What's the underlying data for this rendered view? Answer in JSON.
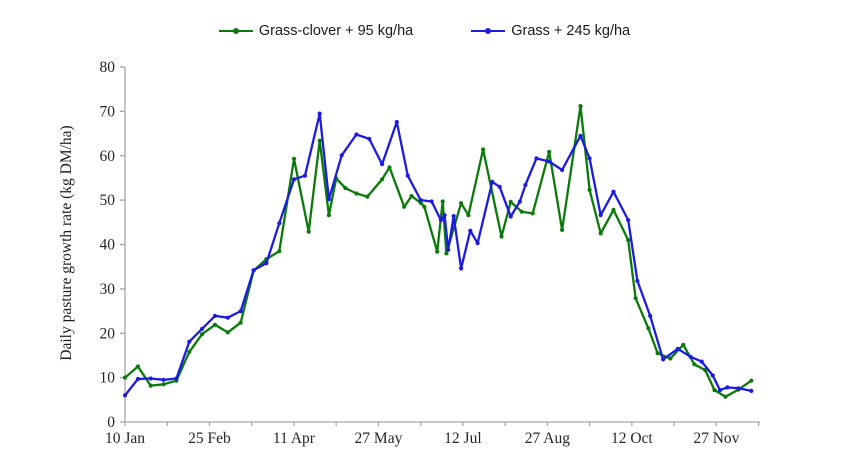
{
  "legend": {
    "items": [
      {
        "label": "Grass-clover + 95 kg/ha",
        "color": "#0a7a0a"
      },
      {
        "label": "Grass + 245 kg/ha",
        "color": "#1c1ce0"
      }
    ]
  },
  "chart_data": {
    "type": "line",
    "title": "",
    "xlabel": "",
    "ylabel": "Daily pasture growth rate (kg DM/ha)",
    "ylim": [
      0,
      80
    ],
    "y_ticks": [
      0,
      10,
      20,
      30,
      40,
      50,
      60,
      70,
      80
    ],
    "grid": false,
    "legend_position": "top-center",
    "x_unit": "days since 10 Jan",
    "x_range_days": [
      0,
      345
    ],
    "x_major_ticks": [
      {
        "day": 0,
        "label": "10 Jan"
      },
      {
        "day": 46,
        "label": "25 Feb"
      },
      {
        "day": 92,
        "label": "11 Apr"
      },
      {
        "day": 138,
        "label": "27 May"
      },
      {
        "day": 184,
        "label": "12 Jul"
      },
      {
        "day": 230,
        "label": "27 Aug"
      },
      {
        "day": 276,
        "label": "12 Oct"
      },
      {
        "day": 322,
        "label": "27 Nov"
      }
    ],
    "x_minor_ticks_days": [
      23,
      69,
      115,
      161,
      207,
      253,
      299,
      345
    ],
    "axis_color": "#a6a6a6",
    "tick_text_color": "#262626",
    "series": [
      {
        "name": "Grass-clover + 95 kg/ha",
        "color": "#0a7a0a",
        "points": [
          [
            0,
            10.0
          ],
          [
            7,
            12.5
          ],
          [
            14,
            8.2
          ],
          [
            21,
            8.5
          ],
          [
            28,
            9.3
          ],
          [
            35,
            15.8
          ],
          [
            42,
            19.8
          ],
          [
            49,
            21.9
          ],
          [
            56,
            20.2
          ],
          [
            63,
            22.4
          ],
          [
            70,
            34.1
          ],
          [
            77,
            36.7
          ],
          [
            84,
            38.5
          ],
          [
            92,
            59.3
          ],
          [
            100,
            42.9
          ],
          [
            106,
            63.4
          ],
          [
            111,
            46.6
          ],
          [
            115,
            54.9
          ],
          [
            120,
            52.7
          ],
          [
            126,
            51.5
          ],
          [
            132,
            50.8
          ],
          [
            140,
            54.7
          ],
          [
            144,
            57.4
          ],
          [
            152,
            48.5
          ],
          [
            156,
            50.9
          ],
          [
            161,
            49.4
          ],
          [
            163,
            48.5
          ],
          [
            170,
            38.4
          ],
          [
            173,
            49.7
          ],
          [
            175,
            38.0
          ],
          [
            183,
            49.3
          ],
          [
            187,
            46.6
          ],
          [
            195,
            61.4
          ],
          [
            205,
            41.8
          ],
          [
            210,
            49.6
          ],
          [
            216,
            47.4
          ],
          [
            222,
            47.0
          ],
          [
            231,
            60.9
          ],
          [
            238,
            43.3
          ],
          [
            248,
            71.2
          ],
          [
            253,
            52.3
          ],
          [
            259,
            42.5
          ],
          [
            266,
            47.8
          ],
          [
            274,
            41.0
          ],
          [
            278,
            27.9
          ],
          [
            285,
            21.1
          ],
          [
            290,
            15.5
          ],
          [
            297,
            14.3
          ],
          [
            304,
            17.4
          ],
          [
            310,
            13.0
          ],
          [
            316,
            11.7
          ],
          [
            321,
            7.2
          ],
          [
            327,
            5.7
          ],
          [
            334,
            7.3
          ],
          [
            341,
            9.3
          ]
        ]
      },
      {
        "name": "Grass + 245 kg/ha",
        "color": "#1c1ce0",
        "points": [
          [
            0,
            6.0
          ],
          [
            7,
            9.7
          ],
          [
            14,
            9.8
          ],
          [
            21,
            9.5
          ],
          [
            28,
            9.8
          ],
          [
            35,
            18.1
          ],
          [
            42,
            21.0
          ],
          [
            49,
            23.9
          ],
          [
            56,
            23.5
          ],
          [
            63,
            25.0
          ],
          [
            70,
            34.2
          ],
          [
            77,
            35.8
          ],
          [
            84,
            44.8
          ],
          [
            92,
            54.7
          ],
          [
            98,
            55.5
          ],
          [
            106,
            69.5
          ],
          [
            111,
            50.2
          ],
          [
            118,
            60.1
          ],
          [
            126,
            64.8
          ],
          [
            133,
            63.8
          ],
          [
            140,
            58.1
          ],
          [
            148,
            67.6
          ],
          [
            154,
            55.5
          ],
          [
            161,
            50.0
          ],
          [
            167,
            49.7
          ],
          [
            172,
            45.5
          ],
          [
            174,
            46.6
          ],
          [
            176,
            38.8
          ],
          [
            179,
            46.4
          ],
          [
            183,
            34.6
          ],
          [
            188,
            43.1
          ],
          [
            192,
            40.3
          ],
          [
            200,
            54.1
          ],
          [
            204,
            53.0
          ],
          [
            210,
            46.3
          ],
          [
            215,
            49.7
          ],
          [
            218,
            53.4
          ],
          [
            224,
            59.4
          ],
          [
            231,
            58.7
          ],
          [
            238,
            56.8
          ],
          [
            248,
            64.5
          ],
          [
            253,
            59.4
          ],
          [
            259,
            46.6
          ],
          [
            266,
            51.9
          ],
          [
            274,
            45.5
          ],
          [
            279,
            31.8
          ],
          [
            286,
            23.9
          ],
          [
            293,
            14.1
          ],
          [
            301,
            16.5
          ],
          [
            308,
            14.7
          ],
          [
            314,
            13.6
          ],
          [
            320,
            10.5
          ],
          [
            324,
            7.2
          ],
          [
            328,
            7.8
          ],
          [
            334,
            7.6
          ],
          [
            341,
            7.0
          ]
        ]
      }
    ]
  }
}
